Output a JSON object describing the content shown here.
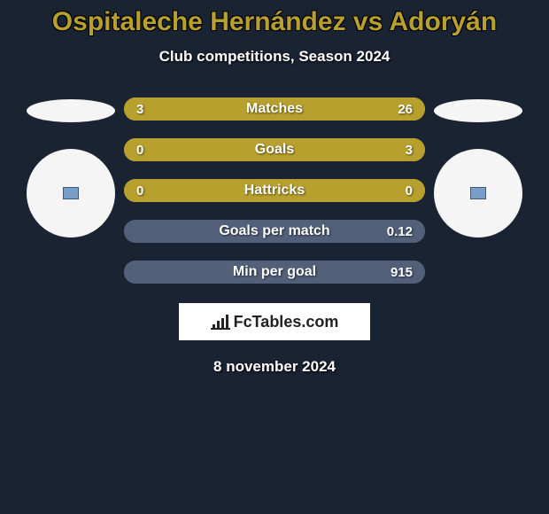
{
  "title": "Ospitaleche Hernández vs Adoryán",
  "subtitle": "Club competitions, Season 2024",
  "colors": {
    "background": "#1a2332",
    "accent": "#b8a02e",
    "neutral": "#52607a",
    "white": "#ffffff",
    "flag_bg": "#f5f5f5"
  },
  "stats": [
    {
      "label": "Matches",
      "left_val": "3",
      "right_val": "26",
      "left_num": 3,
      "right_num": 26,
      "left_color": "#b8a02e",
      "right_color": "#b8a02e",
      "bar_bg": "#b8a02e",
      "left_pct": 10,
      "right_pct": 90
    },
    {
      "label": "Goals",
      "left_val": "0",
      "right_val": "3",
      "left_num": 0,
      "right_num": 3,
      "left_color": "#b8a02e",
      "right_color": "#b8a02e",
      "bar_bg": "#b8a02e",
      "left_pct": 0,
      "right_pct": 100
    },
    {
      "label": "Hattricks",
      "left_val": "0",
      "right_val": "0",
      "left_num": 0,
      "right_num": 0,
      "left_color": "#b8a02e",
      "right_color": "#b8a02e",
      "bar_bg": "#b8a02e",
      "left_pct": 50,
      "right_pct": 50
    },
    {
      "label": "Goals per match",
      "left_val": "",
      "right_val": "0.12",
      "left_num": 0,
      "right_num": 0.12,
      "left_color": "#52607a",
      "right_color": "#52607a",
      "bar_bg": "#52607a",
      "left_pct": 0,
      "right_pct": 100
    },
    {
      "label": "Min per goal",
      "left_val": "",
      "right_val": "915",
      "left_num": 0,
      "right_num": 915,
      "left_color": "#52607a",
      "right_color": "#52607a",
      "bar_bg": "#52607a",
      "left_pct": 0,
      "right_pct": 100
    }
  ],
  "logo": {
    "text": "FcTables.com"
  },
  "date": "8 november 2024"
}
